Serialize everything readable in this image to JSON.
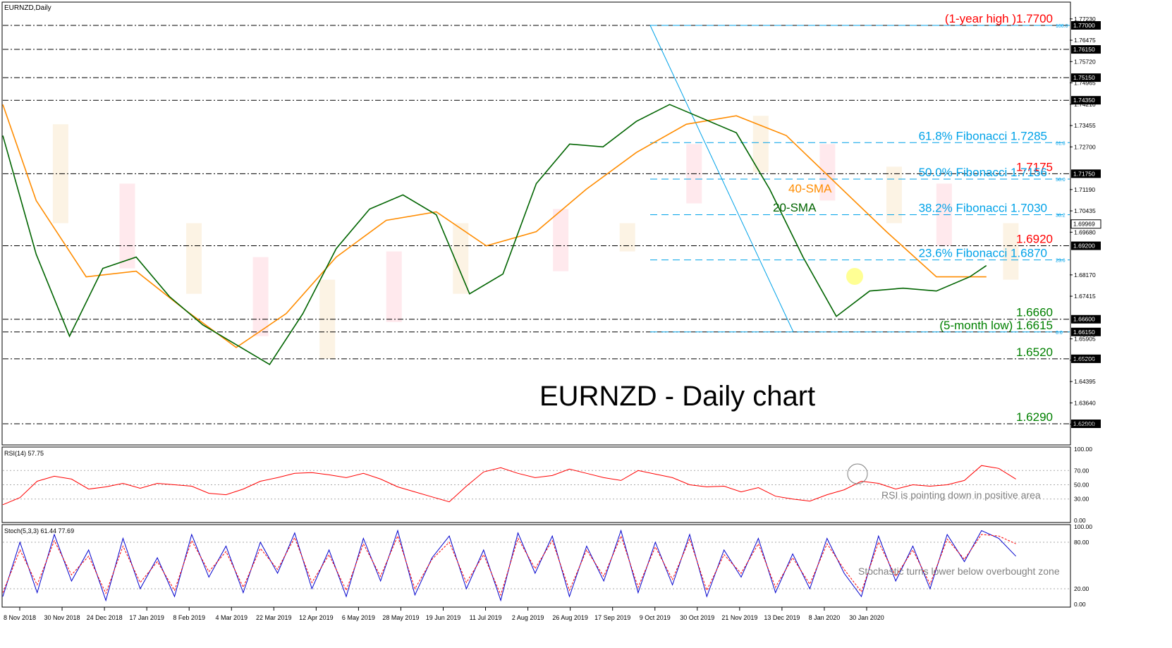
{
  "chart_data": [
    {
      "panel": "price",
      "type": "line",
      "symbol_label": "EURNZD,Daily",
      "title": "EURNZD - Daily chart",
      "ylim": [
        1.623,
        1.775
      ],
      "y_ticks": [
        "1.77230",
        "1.76475",
        "1.75720",
        "1.74965",
        "1.74210",
        "1.73455",
        "1.72700",
        "1.71190",
        "1.70435",
        "1.69680",
        "1.68170",
        "1.67415",
        "1.65905",
        "1.65150",
        "1.64395",
        "1.63640",
        "1.62885"
      ],
      "x_tick_labels": [
        "8 Nov 2018",
        "30 Nov 2018",
        "24 Dec 2018",
        "17 Jan 2019",
        "8 Feb 2019",
        "4 Mar 2019",
        "22 Mar 2019",
        "12 Apr 2019",
        "6 May 2019",
        "28 May 2019",
        "19 Jun 2019",
        "11 Jul 2019",
        "2 Aug 2019",
        "26 Aug 2019",
        "17 Sep 2019",
        "9 Oct 2019",
        "30 Oct 2019",
        "21 Nov 2019",
        "13 Dec 2019",
        "8 Jan 2020",
        "30 Jan 2020"
      ],
      "grid": false,
      "levels": [
        {
          "value": 1.77,
          "axis_label": "1.77000",
          "label": "(1-year high )1.7700",
          "color": "#ff0000"
        },
        {
          "value": 1.7615,
          "axis_label": "1.76150",
          "label": "",
          "color": "#000000"
        },
        {
          "value": 1.7515,
          "axis_label": "1.75150",
          "label": "",
          "color": "#000000"
        },
        {
          "value": 1.7435,
          "axis_label": "1.74350",
          "label": "",
          "color": "#000000"
        },
        {
          "value": 1.7175,
          "axis_label": "1.71750",
          "label": "1.7175",
          "color": "#ff0000"
        },
        {
          "value": 1.692,
          "axis_label": "1.69200",
          "label": "1.6920",
          "color": "#ff0000"
        },
        {
          "value": 1.666,
          "axis_label": "1.66600",
          "label": "1.6660",
          "color": "#008000"
        },
        {
          "value": 1.6615,
          "axis_label": "1.66150",
          "label": "(5-month low) 1.6615",
          "color": "#008000"
        },
        {
          "value": 1.652,
          "axis_label": "1.65200",
          "label": "1.6520",
          "color": "#008000"
        },
        {
          "value": 1.629,
          "axis_label": "1.62900",
          "label": "1.6290",
          "color": "#008000"
        }
      ],
      "fibonacci": [
        {
          "pct": "100.0",
          "value": 1.77,
          "label": ""
        },
        {
          "pct": "61.8",
          "value": 1.7285,
          "label": "61.8% Fibonacci 1.7285"
        },
        {
          "pct": "50.0",
          "value": 1.7156,
          "label": "50.0% Fibonacci 1.7156"
        },
        {
          "pct": "38.2",
          "value": 1.703,
          "label": "38.2% Fibonacci 1.7030"
        },
        {
          "pct": "23.6",
          "value": 1.687,
          "label": "23.6% Fibonacci 1.6870"
        },
        {
          "pct": "0.0",
          "value": 1.6615,
          "label": ""
        }
      ],
      "current_price": {
        "value": 1.6997,
        "axis_label": "1.69969"
      },
      "series": [
        {
          "name": "40-SMA",
          "color": "#ff8c00",
          "x": [
            0,
            20,
            50,
            80,
            110,
            140,
            170,
            200,
            230,
            260,
            290,
            320,
            350,
            380,
            410,
            440,
            470,
            500,
            530,
            560,
            590
          ],
          "values": [
            1.742,
            1.708,
            1.681,
            1.683,
            1.669,
            1.656,
            1.668,
            1.688,
            1.701,
            1.704,
            1.692,
            1.697,
            1.712,
            1.725,
            1.735,
            1.738,
            1.731,
            1.714,
            1.697,
            1.681,
            1.681
          ]
        },
        {
          "name": "20-SMA",
          "color": "#006400",
          "x": [
            0,
            20,
            40,
            60,
            80,
            100,
            120,
            140,
            160,
            180,
            200,
            220,
            240,
            260,
            280,
            300,
            320,
            340,
            360,
            380,
            400,
            420,
            440,
            460,
            480,
            500,
            520,
            540,
            560,
            580,
            590
          ],
          "values": [
            1.731,
            1.689,
            1.66,
            1.684,
            1.688,
            1.674,
            1.664,
            1.657,
            1.65,
            1.668,
            1.691,
            1.705,
            1.71,
            1.703,
            1.675,
            1.682,
            1.714,
            1.728,
            1.727,
            1.736,
            1.742,
            1.737,
            1.732,
            1.712,
            1.688,
            1.667,
            1.676,
            1.677,
            1.676,
            1.681,
            1.685
          ]
        }
      ]
    },
    {
      "panel": "rsi",
      "type": "line",
      "label": "RSI(14) 57.75",
      "ylim": [
        0,
        100
      ],
      "y_ticks": [
        "100.00",
        "70.00",
        "50.00",
        "30.00",
        "0.00"
      ],
      "annotation": "RSI is pointing down in positive area",
      "series": [
        {
          "name": "",
          "color": "#ff0000",
          "x": [
            0,
            10,
            20,
            30,
            40,
            50,
            60,
            70,
            80,
            90,
            100,
            110,
            120,
            130,
            140,
            150,
            160,
            170,
            180,
            190,
            200,
            210,
            220,
            230,
            240,
            250,
            260,
            270,
            280,
            290,
            300,
            310,
            320,
            330,
            340,
            350,
            360,
            370,
            380,
            390,
            400,
            410,
            420,
            430,
            440,
            450,
            460,
            470,
            480,
            490,
            500,
            510,
            520,
            530,
            540,
            550,
            560,
            570,
            580,
            590
          ],
          "values": [
            22,
            32,
            55,
            62,
            58,
            44,
            47,
            52,
            45,
            52,
            50,
            48,
            38,
            36,
            44,
            55,
            60,
            66,
            67,
            64,
            60,
            66,
            58,
            47,
            40,
            33,
            26,
            48,
            68,
            74,
            66,
            60,
            63,
            72,
            66,
            60,
            56,
            70,
            65,
            60,
            50,
            47,
            48,
            40,
            46,
            34,
            30,
            27,
            36,
            43,
            55,
            52,
            44,
            50,
            48,
            50,
            56,
            77,
            73,
            58
          ]
        }
      ]
    },
    {
      "panel": "stochastic",
      "type": "line",
      "label": "Stoch(5,3,3) 61.44 77.69",
      "ylim": [
        0,
        100
      ],
      "y_ticks": [
        "100.00",
        "80.00",
        "20.00",
        "0.00"
      ],
      "annotation": "Stochastic turns lower below overbought zone",
      "series": [
        {
          "name": "",
          "color": "#0000cd",
          "x": [
            0,
            10,
            20,
            30,
            40,
            50,
            60,
            70,
            80,
            90,
            100,
            110,
            120,
            130,
            140,
            150,
            160,
            170,
            180,
            190,
            200,
            210,
            220,
            230,
            240,
            250,
            260,
            270,
            280,
            290,
            300,
            310,
            320,
            330,
            340,
            350,
            360,
            370,
            380,
            390,
            400,
            410,
            420,
            430,
            440,
            450,
            460,
            470,
            480,
            490,
            500,
            510,
            520,
            530,
            540,
            550,
            560,
            570,
            580,
            590
          ],
          "values": [
            10,
            80,
            15,
            90,
            30,
            70,
            5,
            85,
            20,
            60,
            10,
            90,
            35,
            75,
            15,
            80,
            40,
            92,
            20,
            70,
            10,
            85,
            30,
            95,
            12,
            60,
            88,
            20,
            70,
            5,
            92,
            40,
            88,
            10,
            75,
            30,
            95,
            15,
            80,
            25,
            90,
            10,
            70,
            35,
            85,
            15,
            65,
            20,
            85,
            40,
            10,
            88,
            30,
            75,
            20,
            90,
            55,
            95,
            85,
            62
          ]
        },
        {
          "name": "",
          "color": "#ff0000",
          "x": [
            0,
            10,
            20,
            30,
            40,
            50,
            60,
            70,
            80,
            90,
            100,
            110,
            120,
            130,
            140,
            150,
            160,
            170,
            180,
            190,
            200,
            210,
            220,
            230,
            240,
            250,
            260,
            270,
            280,
            290,
            300,
            310,
            320,
            330,
            340,
            350,
            360,
            370,
            380,
            390,
            400,
            410,
            420,
            430,
            440,
            450,
            460,
            470,
            480,
            490,
            500,
            510,
            520,
            530,
            540,
            550,
            560,
            570,
            580,
            590
          ],
          "values": [
            15,
            70,
            25,
            82,
            38,
            62,
            14,
            75,
            28,
            55,
            18,
            82,
            42,
            68,
            22,
            72,
            45,
            86,
            28,
            64,
            18,
            78,
            36,
            88,
            20,
            58,
            80,
            28,
            64,
            12,
            85,
            46,
            82,
            18,
            70,
            36,
            88,
            22,
            74,
            32,
            84,
            18,
            64,
            40,
            78,
            22,
            60,
            26,
            78,
            45,
            16,
            80,
            36,
            70,
            26,
            84,
            58,
            90,
            88,
            78
          ]
        }
      ]
    }
  ],
  "legend_labels": {
    "sma40": "40-SMA",
    "sma20": "20-SMA"
  }
}
